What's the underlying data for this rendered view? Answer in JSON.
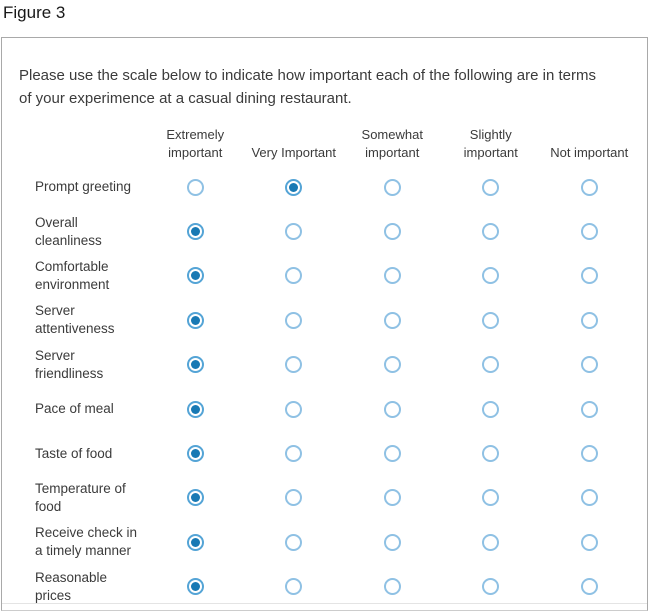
{
  "figure_label": "Figure 3",
  "survey": {
    "question": "Please use the scale below to indicate how important each of the following are in terms of your experimence at a casual dining restaurant.",
    "columns": [
      "Extremely important",
      "Very Important",
      "Somewhat important",
      "Slightly important",
      "Not important"
    ],
    "rows": [
      {
        "label": "Prompt greeting",
        "selected": 1
      },
      {
        "label": "Overall cleanliness",
        "selected": 0
      },
      {
        "label": "Comfortable environment",
        "selected": 0
      },
      {
        "label": "Server attentiveness",
        "selected": 0
      },
      {
        "label": "Server friendliness",
        "selected": 0
      },
      {
        "label": "Pace of meal",
        "selected": 0
      },
      {
        "label": "Taste of food",
        "selected": 0
      },
      {
        "label": "Temperature of food",
        "selected": 0
      },
      {
        "label": "Receive check in a timely manner",
        "selected": 0
      },
      {
        "label": "Reasonable prices",
        "selected": 0
      }
    ],
    "colors": {
      "radio_ring_unselected": "#8fc1e4",
      "radio_ring_selected": "#54a4d6",
      "radio_dot": "#1879b4",
      "panel_border": "#a9a9a9",
      "text": "#3b3b3b"
    }
  }
}
